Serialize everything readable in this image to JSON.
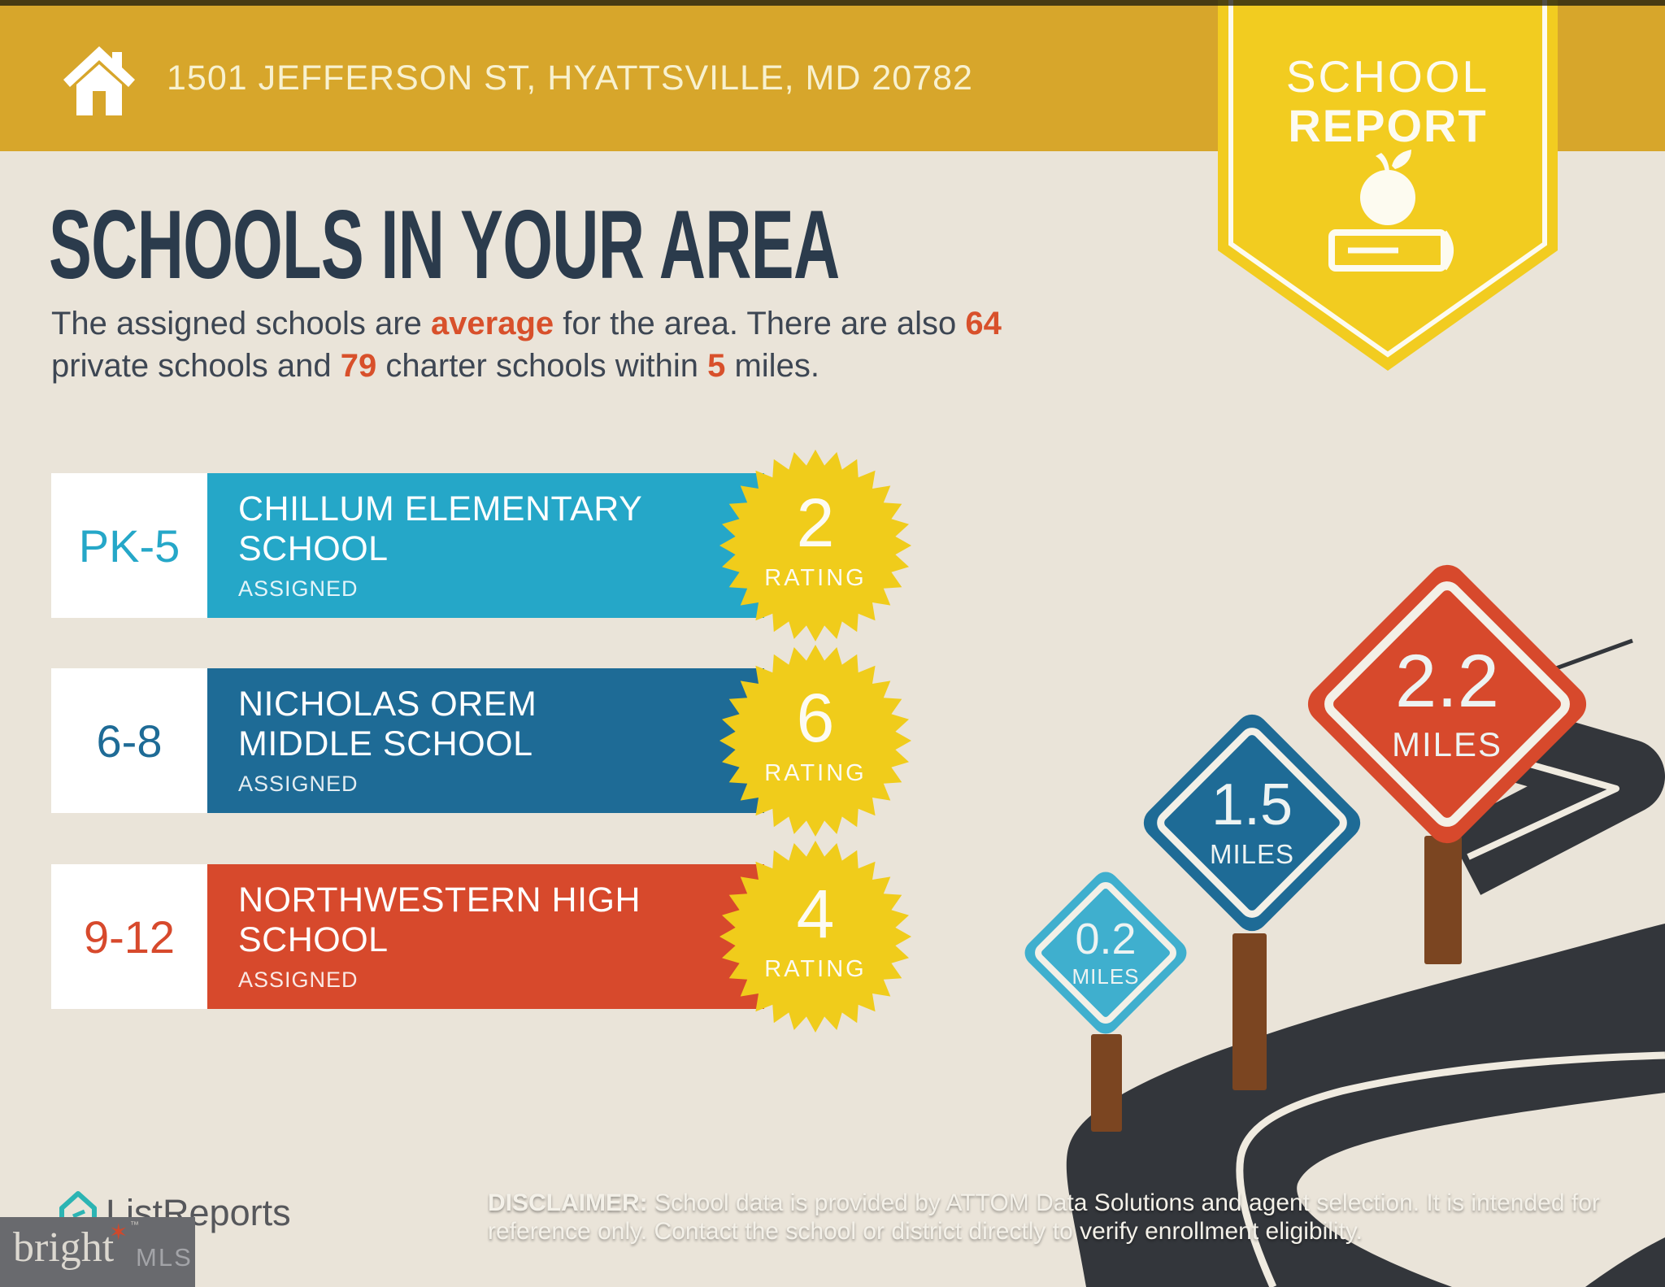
{
  "header": {
    "address": "1501 JEFFERSON ST, HYATTSVILLE, MD 20782",
    "background_color": "#D7A62B"
  },
  "report_badge": {
    "line1": "SCHOOL",
    "line2": "REPORT",
    "icon": "apple-on-book-icon",
    "background_color": "#F2CC20"
  },
  "page": {
    "title": "SCHOOLS IN YOUR AREA",
    "title_color": "#2B3B4C",
    "accent_color": "#D8502B",
    "background_color": "#EAE4D9",
    "subtitle_segments": [
      {
        "text": "The assigned schools are ",
        "highlight": false
      },
      {
        "text": "average",
        "highlight": true
      },
      {
        "text": " for the area. There are also ",
        "highlight": false
      },
      {
        "text": "64",
        "highlight": true
      },
      {
        "text": " private schools and ",
        "highlight": false
      },
      {
        "text": "79",
        "highlight": true
      },
      {
        "text": " charter schools within ",
        "highlight": false
      },
      {
        "text": "5",
        "highlight": true
      },
      {
        "text": " miles.",
        "highlight": false
      }
    ]
  },
  "schools": [
    {
      "grades": "PK-5",
      "name_line1": "CHILLUM ELEMENTARY",
      "name_line2": "SCHOOL",
      "status": "ASSIGNED",
      "rating": "2",
      "rating_label": "RATING",
      "color": "#25A7C8"
    },
    {
      "grades": "6-8",
      "name_line1": "NICHOLAS OREM",
      "name_line2": "MIDDLE SCHOOL",
      "status": "ASSIGNED",
      "rating": "6",
      "rating_label": "RATING",
      "color": "#1E6B96"
    },
    {
      "grades": "9-12",
      "name_line1": "NORTHWESTERN HIGH",
      "name_line2": "SCHOOL",
      "status": "ASSIGNED",
      "rating": "4",
      "rating_label": "RATING",
      "color": "#D7492C"
    }
  ],
  "rating_badge_color": "#F0CC1B",
  "distance_signs": [
    {
      "distance": "0.2",
      "unit": "MILES",
      "color": "#3FAFCE"
    },
    {
      "distance": "1.5",
      "unit": "MILES",
      "color": "#1E6B96"
    },
    {
      "distance": "2.2",
      "unit": "MILES",
      "color": "#D7492C"
    }
  ],
  "road_color": "#33363B",
  "footer": {
    "listreports_logo": "ListReports",
    "disclaimer_label": "DISCLAIMER:",
    "disclaimer_text": " School data is provided by ATTOM Data Solutions and agent selection. It is intended for reference only. Contact the school or district directly to verify enrollment eligibility.",
    "brightmls": {
      "word": "bright",
      "tm": "™",
      "suffix": "MLS"
    }
  }
}
